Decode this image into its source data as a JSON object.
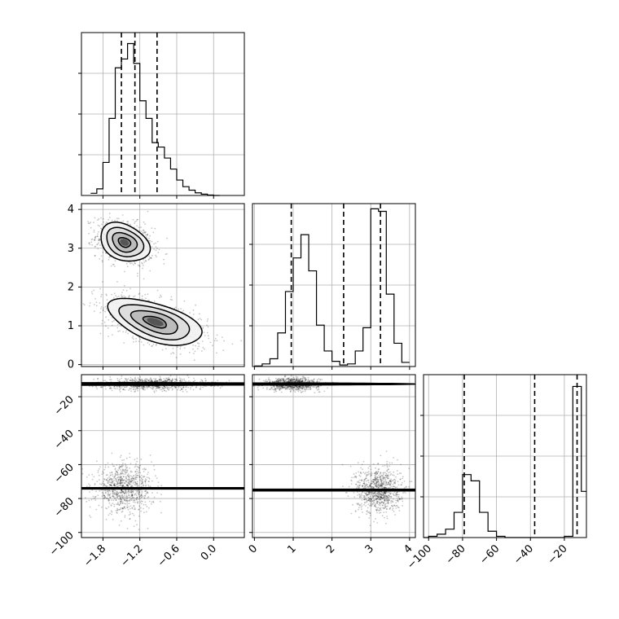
{
  "chart_data": {
    "type": "corner",
    "title": "",
    "grid": true,
    "parameters": [
      {
        "range": [
          -2.15,
          0.5
        ],
        "ticks": [
          -1.8,
          -1.2,
          -0.6,
          0.0
        ],
        "tick_labels": [
          "−1.8",
          "−1.2",
          "−0.6",
          "0.0"
        ],
        "quantiles": [
          -1.5,
          -1.28,
          -0.92
        ]
      },
      {
        "range": [
          -0.05,
          4.15
        ],
        "ticks": [
          0,
          1,
          2,
          3,
          4
        ],
        "tick_labels": [
          "0",
          "1",
          "2",
          "3",
          "4"
        ],
        "quantiles": [
          0.95,
          2.3,
          3.25
        ]
      },
      {
        "range": [
          -103,
          -7
        ],
        "ticks": [
          -100,
          -80,
          -60,
          -40,
          -20
        ],
        "tick_labels": [
          "−100",
          "−80",
          "−60",
          "−40",
          "−20"
        ],
        "quantiles": [
          -79,
          -37.5,
          -12.5
        ]
      }
    ],
    "histograms": [
      {
        "bin_edges": [
          -2.0,
          -1.9,
          -1.8,
          -1.7,
          -1.6,
          -1.5,
          -1.4,
          -1.3,
          -1.2,
          -1.1,
          -1.0,
          -0.9,
          -0.8,
          -0.7,
          -0.6,
          -0.5,
          -0.4,
          -0.3,
          -0.2,
          -0.1,
          0.0,
          0.1
        ],
        "counts": [
          0.5,
          1.5,
          7.5,
          17.5,
          29,
          31,
          34.5,
          30,
          21.5,
          17.5,
          12,
          11,
          8.5,
          6,
          3.5,
          2,
          1.2,
          0.6,
          0.3,
          0.1,
          0.0
        ],
        "ymax": 37
      },
      {
        "bin_edges": [
          0.0,
          0.2,
          0.4,
          0.6,
          0.8,
          1.0,
          1.2,
          1.4,
          1.6,
          1.8,
          2.0,
          2.2,
          2.4,
          2.6,
          2.8,
          3.0,
          3.2,
          3.4,
          3.6,
          3.8,
          4.0
        ],
        "counts": [
          0.1,
          0.5,
          1.5,
          6.5,
          14.5,
          21,
          25.5,
          18.5,
          8,
          3,
          1,
          0.3,
          0.5,
          3,
          7.5,
          30.5,
          30,
          14,
          4.5,
          0.8
        ],
        "ymax": 31.5
      },
      {
        "bin_edges": [
          -105,
          -100,
          -95,
          -90,
          -85,
          -80,
          -75,
          -70,
          -65,
          -60,
          -55,
          -50,
          -45,
          -40,
          -35,
          -30,
          -25,
          -20,
          -15,
          -10,
          -5
        ],
        "counts": [
          0,
          0.3,
          0.8,
          2,
          6,
          15,
          13.5,
          6,
          1.5,
          0.3,
          0,
          0,
          0,
          0,
          0,
          0,
          0,
          0.3,
          36,
          11
        ],
        "ymax": 38.8
      }
    ],
    "hist_yticks_fraction": [
      0.25,
      0.5,
      0.75
    ],
    "pair_panels": [
      {
        "x_param": 0,
        "y_param": 1,
        "modes": [
          {
            "center": [
              -1.45,
              3.15
            ],
            "sigma": [
              0.2,
              0.25
            ],
            "rho": -0.3,
            "weight": 0.5,
            "peak": 3.2
          },
          {
            "center": [
              -0.95,
              1.1
            ],
            "sigma": [
              0.38,
              0.3
            ],
            "rho": -0.55,
            "weight": 0.5,
            "peak": 1.6
          }
        ]
      },
      {
        "x_param": 0,
        "y_param": 2,
        "modes": [
          {
            "center": [
              -1.0,
              -12.5
            ],
            "sigma": [
              0.38,
              1.5
            ],
            "rho": 0,
            "weight": 0.5,
            "peak": 2.2
          },
          {
            "center": [
              -1.45,
              -74
            ],
            "sigma": [
              0.2,
              6
            ],
            "rho": 0,
            "weight": 0.5,
            "peak": 1.6
          }
        ]
      },
      {
        "x_param": 1,
        "y_param": 2,
        "modes": [
          {
            "center": [
              1.0,
              -12.5
            ],
            "sigma": [
              0.3,
              1.5
            ],
            "rho": 0,
            "weight": 0.5,
            "peak": 2.2
          },
          {
            "center": [
              3.2,
              -75
            ],
            "sigma": [
              0.25,
              6
            ],
            "rho": 0,
            "weight": 0.5,
            "peak": 1.6
          }
        ]
      }
    ],
    "contour_levels_sigma": [
      0.5,
      1.0,
      1.5,
      2.0
    ],
    "colors": {
      "line": "#000000",
      "grid": "#b0b0b0",
      "points": "#000000",
      "background": "#ffffff"
    }
  }
}
